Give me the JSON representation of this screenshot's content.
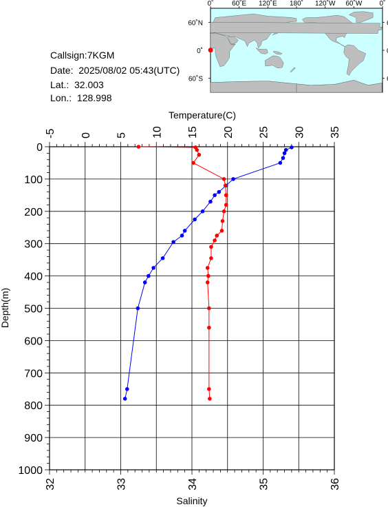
{
  "station": {
    "callsign": "Callsign:7KGM",
    "date": "Date:  2025/08/02 05:43(UTC)",
    "lat": "Lat.:  32.003",
    "lon": "Lon.:  128.998"
  },
  "map": {
    "top_labels": [
      "0˚",
      "60˚E",
      "120˚E",
      "180˚",
      "120˚W",
      "60˚W",
      "0˚"
    ],
    "side_labels": [
      "60˚N",
      "0˚",
      "60˚S"
    ],
    "station_marker_color": "#ff0000",
    "ocean_color": "#ccffff",
    "land_color": "#bebebe"
  },
  "chart_data": {
    "type": "line",
    "title": "",
    "y_axis": {
      "label": "Depth(m)",
      "range": [
        0,
        1000
      ],
      "inverted": true,
      "ticks": [
        "0",
        "100",
        "200",
        "300",
        "400",
        "500",
        "600",
        "700",
        "800",
        "900",
        "1000"
      ]
    },
    "temperature_axis": {
      "label": "Temperature(C)",
      "position": "top",
      "range": [
        -5,
        35
      ],
      "ticks": [
        "-5",
        "0",
        "5",
        "10",
        "15",
        "20",
        "25",
        "30",
        "35"
      ]
    },
    "salinity_axis": {
      "label": "Salinity",
      "position": "bottom",
      "range": [
        32,
        36
      ],
      "ticks": [
        "32",
        "33",
        "34",
        "35",
        "36"
      ]
    },
    "grid": true,
    "series": [
      {
        "color": "#0000ff",
        "axis": "temperature",
        "points": [
          {
            "t": 29.0,
            "d": 2
          },
          {
            "t": 28.2,
            "d": 10
          },
          {
            "t": 28.0,
            "d": 20
          },
          {
            "t": 27.8,
            "d": 35
          },
          {
            "t": 27.4,
            "d": 50
          },
          {
            "t": 20.8,
            "d": 100
          },
          {
            "t": 19.8,
            "d": 120
          },
          {
            "t": 18.8,
            "d": 140
          },
          {
            "t": 18.2,
            "d": 150
          },
          {
            "t": 17.6,
            "d": 170
          },
          {
            "t": 16.5,
            "d": 200
          },
          {
            "t": 15.4,
            "d": 225
          },
          {
            "t": 14.0,
            "d": 260
          },
          {
            "t": 13.6,
            "d": 275
          },
          {
            "t": 12.4,
            "d": 295
          },
          {
            "t": 10.9,
            "d": 345
          },
          {
            "t": 9.6,
            "d": 375
          },
          {
            "t": 8.9,
            "d": 400
          },
          {
            "t": 8.4,
            "d": 420
          },
          {
            "t": 7.4,
            "d": 500
          },
          {
            "t": 5.9,
            "d": 750
          },
          {
            "t": 5.6,
            "d": 780
          }
        ]
      },
      {
        "color": "#ff0000",
        "axis": "salinity",
        "points": [
          {
            "s": 33.25,
            "d": 0
          },
          {
            "s": 34.05,
            "d": 2
          },
          {
            "s": 34.07,
            "d": 10
          },
          {
            "s": 34.1,
            "d": 25
          },
          {
            "s": 34.02,
            "d": 50
          },
          {
            "s": 34.45,
            "d": 100
          },
          {
            "s": 34.47,
            "d": 120
          },
          {
            "s": 34.48,
            "d": 150
          },
          {
            "s": 34.48,
            "d": 180
          },
          {
            "s": 34.45,
            "d": 200
          },
          {
            "s": 34.43,
            "d": 230
          },
          {
            "s": 34.42,
            "d": 260
          },
          {
            "s": 34.35,
            "d": 275
          },
          {
            "s": 34.32,
            "d": 290
          },
          {
            "s": 34.27,
            "d": 310
          },
          {
            "s": 34.27,
            "d": 345
          },
          {
            "s": 34.22,
            "d": 375
          },
          {
            "s": 34.23,
            "d": 400
          },
          {
            "s": 34.22,
            "d": 420
          },
          {
            "s": 34.24,
            "d": 500
          },
          {
            "s": 34.24,
            "d": 560
          },
          {
            "s": 34.24,
            "d": 750
          },
          {
            "s": 34.25,
            "d": 780
          }
        ]
      }
    ]
  }
}
